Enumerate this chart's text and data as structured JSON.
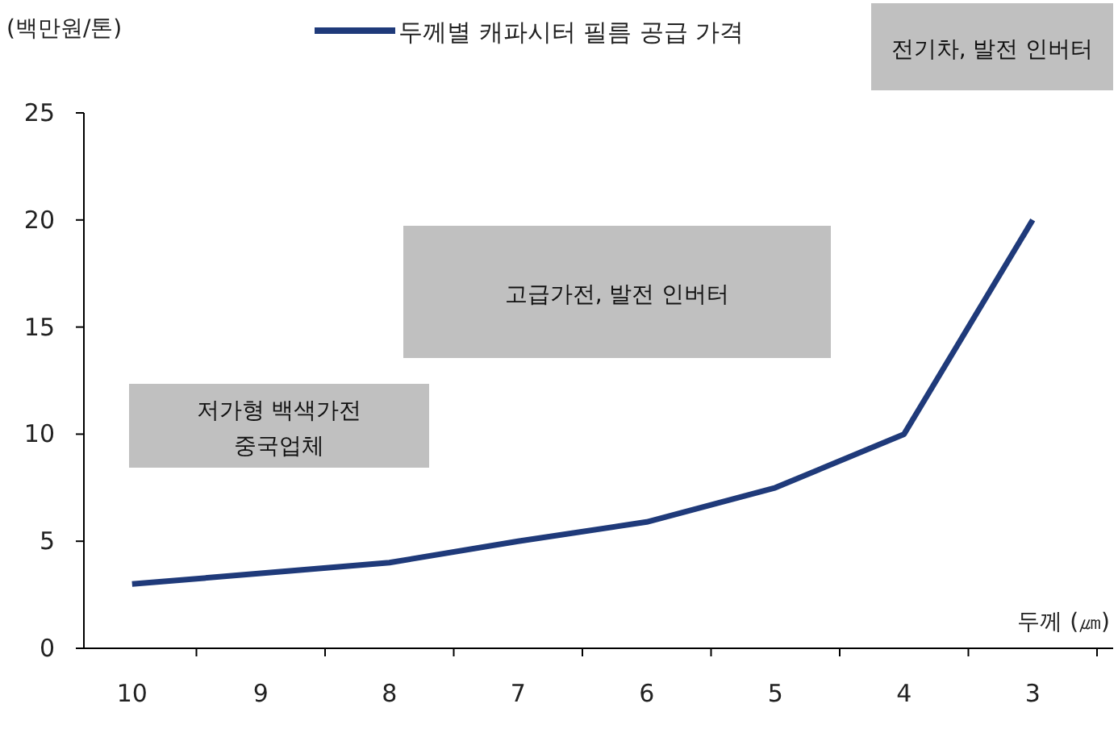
{
  "chart_data": {
    "type": "line",
    "ylabel": "(백만원/톤)",
    "xlabel": "두께 (㎛)",
    "categories": [
      "10",
      "9",
      "8",
      "7",
      "6",
      "5",
      "4",
      "3"
    ],
    "series": [
      {
        "name": "두께별 캐파시터 필름 공급 가격",
        "color": "#1f3a7a",
        "values": [
          3,
          3.5,
          4,
          5,
          5.9,
          7.5,
          10,
          20
        ]
      }
    ],
    "ylim": [
      0,
      25
    ],
    "yticks": [
      0,
      5,
      10,
      15,
      20,
      25
    ],
    "grid": false,
    "legend": "top",
    "marker": "none",
    "line_style": "solid",
    "annotations": [
      "저가형 백색가전\n중국업체",
      "고급가전, 발전 인버터",
      "전기차, 발전 인버터"
    ]
  }
}
